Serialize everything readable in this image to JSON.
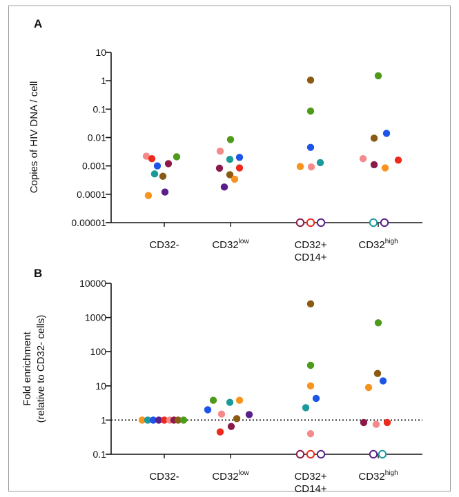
{
  "chart_data": [
    {
      "panel": "A",
      "type": "scatter",
      "ylabel": "Copies of HIV DNA / cell",
      "yscale": "log",
      "ylim": [
        1e-05,
        10
      ],
      "ytick_labels": [
        "10",
        "1",
        "0.1",
        "0.01",
        "0.001",
        "0.0001",
        "0.00001"
      ],
      "ytick_values": [
        10,
        1,
        0.1,
        0.01,
        0.001,
        0.0001,
        1e-05
      ],
      "categories": [
        {
          "base": "CD32-",
          "sup": "",
          "line2": ""
        },
        {
          "base": "CD32",
          "sup": "low",
          "line2": ""
        },
        {
          "base": "CD32+",
          "sup": "",
          "line2": "CD14+"
        },
        {
          "base": "CD32",
          "sup": "high",
          "line2": ""
        }
      ],
      "points": [
        {
          "cat": 0,
          "off": -26,
          "y": 0.0022,
          "color": "#f58a8a",
          "filled": true
        },
        {
          "cat": 0,
          "off": -18,
          "y": 0.0018,
          "color": "#ee2a1c",
          "filled": true
        },
        {
          "cat": 0,
          "off": -10,
          "y": 0.001,
          "color": "#1f54e8",
          "filled": true
        },
        {
          "cat": 0,
          "off": -14,
          "y": 0.00052,
          "color": "#1a9a9a",
          "filled": true
        },
        {
          "cat": 0,
          "off": -23,
          "y": 9e-05,
          "color": "#f7931e",
          "filled": true
        },
        {
          "cat": 0,
          "off": -2,
          "y": 0.00043,
          "color": "#8b5a14",
          "filled": true
        },
        {
          "cat": 0,
          "off": 6,
          "y": 0.0012,
          "color": "#8b1a4a",
          "filled": true
        },
        {
          "cat": 0,
          "off": 1,
          "y": 0.00012,
          "color": "#5a1f8a",
          "filled": true
        },
        {
          "cat": 0,
          "off": 18,
          "y": 0.0021,
          "color": "#4e9a1a",
          "filled": true
        },
        {
          "cat": 1,
          "off": -15,
          "y": 0.0033,
          "color": "#f58a8a",
          "filled": true
        },
        {
          "cat": 1,
          "off": 0,
          "y": 0.0085,
          "color": "#4e9a1a",
          "filled": true
        },
        {
          "cat": 1,
          "off": -1,
          "y": 0.0017,
          "color": "#1a9a9a",
          "filled": true
        },
        {
          "cat": 1,
          "off": 13,
          "y": 0.002,
          "color": "#1f54e8",
          "filled": true
        },
        {
          "cat": 1,
          "off": -16,
          "y": 0.00083,
          "color": "#8b1a4a",
          "filled": true
        },
        {
          "cat": 1,
          "off": 13,
          "y": 0.00085,
          "color": "#ee2a1c",
          "filled": true
        },
        {
          "cat": 1,
          "off": -1,
          "y": 0.00049,
          "color": "#8b5a14",
          "filled": true
        },
        {
          "cat": 1,
          "off": 6,
          "y": 0.00034,
          "color": "#f7931e",
          "filled": true
        },
        {
          "cat": 1,
          "off": -9,
          "y": 0.00018,
          "color": "#5a1f8a",
          "filled": true
        },
        {
          "cat": 2,
          "off": 0,
          "y": 1.05,
          "color": "#8b5a14",
          "filled": true
        },
        {
          "cat": 2,
          "off": 0,
          "y": 0.085,
          "color": "#4e9a1a",
          "filled": true
        },
        {
          "cat": 2,
          "off": 0,
          "y": 0.0045,
          "color": "#1f54e8",
          "filled": true
        },
        {
          "cat": 2,
          "off": -15,
          "y": 0.00095,
          "color": "#f7931e",
          "filled": true
        },
        {
          "cat": 2,
          "off": 1,
          "y": 0.00092,
          "color": "#f58a8a",
          "filled": true
        },
        {
          "cat": 2,
          "off": 14,
          "y": 0.0013,
          "color": "#1a9a9a",
          "filled": true
        },
        {
          "cat": 2,
          "off": -15,
          "y": 1e-05,
          "color": "#8b1a4a",
          "filled": false
        },
        {
          "cat": 2,
          "off": 0,
          "y": 1e-05,
          "color": "#ee2a1c",
          "filled": false
        },
        {
          "cat": 2,
          "off": 15,
          "y": 1e-05,
          "color": "#5a1f8a",
          "filled": false
        },
        {
          "cat": 3,
          "off": 0,
          "y": 1.5,
          "color": "#4e9a1a",
          "filled": true
        },
        {
          "cat": 3,
          "off": 12,
          "y": 0.014,
          "color": "#1f54e8",
          "filled": true
        },
        {
          "cat": 3,
          "off": -6,
          "y": 0.0095,
          "color": "#8b5a14",
          "filled": true
        },
        {
          "cat": 3,
          "off": -22,
          "y": 0.0018,
          "color": "#f58a8a",
          "filled": true
        },
        {
          "cat": 3,
          "off": 29,
          "y": 0.0016,
          "color": "#ee2a1c",
          "filled": true
        },
        {
          "cat": 3,
          "off": -6,
          "y": 0.0011,
          "color": "#8b1a4a",
          "filled": true
        },
        {
          "cat": 3,
          "off": 10,
          "y": 0.00085,
          "color": "#f7931e",
          "filled": true
        },
        {
          "cat": 3,
          "off": -7,
          "y": 1e-05,
          "color": "#1a9a9a",
          "filled": false
        },
        {
          "cat": 3,
          "off": 9,
          "y": 1e-05,
          "color": "#5a1f8a",
          "filled": false
        }
      ]
    },
    {
      "panel": "B",
      "type": "scatter",
      "ylabel": "Fold enrichment",
      "ylabel2": "(relative to CD32- cells)",
      "yscale": "log",
      "ylim": [
        0.1,
        10000
      ],
      "ytick_labels": [
        "10000",
        "1000",
        "100",
        "10",
        "1",
        "0.1"
      ],
      "ytick_values": [
        10000,
        1000,
        100,
        10,
        1,
        0.1
      ],
      "reference_line": 1,
      "categories": [
        {
          "base": "CD32-",
          "sup": "",
          "line2": ""
        },
        {
          "base": "CD32",
          "sup": "low",
          "line2": ""
        },
        {
          "base": "CD32+",
          "sup": "",
          "line2": "CD14+"
        },
        {
          "base": "CD32",
          "sup": "high",
          "line2": ""
        }
      ],
      "points": [
        {
          "cat": 0,
          "off": -32,
          "y": 1,
          "color": "#f7931e",
          "filled": true
        },
        {
          "cat": 0,
          "off": -24,
          "y": 1,
          "color": "#1a9a9a",
          "filled": true
        },
        {
          "cat": 0,
          "off": -16,
          "y": 1,
          "color": "#1f54e8",
          "filled": true
        },
        {
          "cat": 0,
          "off": -8,
          "y": 1,
          "color": "#5a1f8a",
          "filled": true
        },
        {
          "cat": 0,
          "off": 0,
          "y": 1,
          "color": "#ee2a1c",
          "filled": true
        },
        {
          "cat": 0,
          "off": 8,
          "y": 1,
          "color": "#f58a8a",
          "filled": true
        },
        {
          "cat": 0,
          "off": 14,
          "y": 1,
          "color": "#8b1a4a",
          "filled": true
        },
        {
          "cat": 0,
          "off": 20,
          "y": 1,
          "color": "#8b5a14",
          "filled": true
        },
        {
          "cat": 0,
          "off": 28,
          "y": 1,
          "color": "#4e9a1a",
          "filled": true
        },
        {
          "cat": 1,
          "off": -33,
          "y": 2.0,
          "color": "#1f54e8",
          "filled": true
        },
        {
          "cat": 1,
          "off": -25,
          "y": 3.8,
          "color": "#4e9a1a",
          "filled": true
        },
        {
          "cat": 1,
          "off": -13,
          "y": 1.5,
          "color": "#f58a8a",
          "filled": true
        },
        {
          "cat": 1,
          "off": -15,
          "y": 0.45,
          "color": "#ee2a1c",
          "filled": true
        },
        {
          "cat": 1,
          "off": -1,
          "y": 3.3,
          "color": "#1a9a9a",
          "filled": true
        },
        {
          "cat": 1,
          "off": 1,
          "y": 0.65,
          "color": "#8b1a4a",
          "filled": true
        },
        {
          "cat": 1,
          "off": 9,
          "y": 1.1,
          "color": "#8b5a14",
          "filled": true
        },
        {
          "cat": 1,
          "off": 13,
          "y": 3.8,
          "color": "#f7931e",
          "filled": true
        },
        {
          "cat": 1,
          "off": 27,
          "y": 1.45,
          "color": "#5a1f8a",
          "filled": true
        },
        {
          "cat": 2,
          "off": 0,
          "y": 2500,
          "color": "#8b5a14",
          "filled": true
        },
        {
          "cat": 2,
          "off": 0,
          "y": 40,
          "color": "#4e9a1a",
          "filled": true
        },
        {
          "cat": 2,
          "off": 0,
          "y": 10,
          "color": "#f7931e",
          "filled": true
        },
        {
          "cat": 2,
          "off": 8,
          "y": 4.3,
          "color": "#1f54e8",
          "filled": true
        },
        {
          "cat": 2,
          "off": -7,
          "y": 2.3,
          "color": "#1a9a9a",
          "filled": true
        },
        {
          "cat": 2,
          "off": 0,
          "y": 0.4,
          "color": "#f58a8a",
          "filled": true
        },
        {
          "cat": 2,
          "off": -15,
          "y": 0.1,
          "color": "#8b1a4a",
          "filled": false
        },
        {
          "cat": 2,
          "off": 0,
          "y": 0.1,
          "color": "#ee2a1c",
          "filled": false
        },
        {
          "cat": 2,
          "off": 15,
          "y": 0.1,
          "color": "#5a1f8a",
          "filled": false
        },
        {
          "cat": 3,
          "off": 0,
          "y": 700,
          "color": "#4e9a1a",
          "filled": true
        },
        {
          "cat": 3,
          "off": -1,
          "y": 23,
          "color": "#8b5a14",
          "filled": true
        },
        {
          "cat": 3,
          "off": 7,
          "y": 14,
          "color": "#1f54e8",
          "filled": true
        },
        {
          "cat": 3,
          "off": -14,
          "y": 9,
          "color": "#f7931e",
          "filled": true
        },
        {
          "cat": 3,
          "off": -21,
          "y": 0.85,
          "color": "#8b1a4a",
          "filled": true
        },
        {
          "cat": 3,
          "off": -3,
          "y": 0.75,
          "color": "#f58a8a",
          "filled": true
        },
        {
          "cat": 3,
          "off": 13,
          "y": 0.85,
          "color": "#ee2a1c",
          "filled": true
        },
        {
          "cat": 3,
          "off": -7,
          "y": 0.1,
          "color": "#5a1f8a",
          "filled": false
        },
        {
          "cat": 3,
          "off": 6,
          "y": 0.1,
          "color": "#1a9a9a",
          "filled": false
        }
      ]
    }
  ]
}
